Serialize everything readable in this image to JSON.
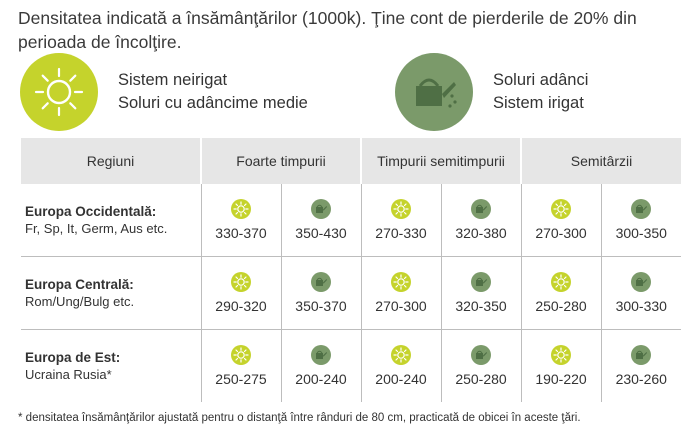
{
  "intro": "Densitatea indicată a însămânţărilor (1000k). Ţine cont de pierderile de 20% din perioada de încolţire.",
  "legend": {
    "dry": {
      "icon": "sun-icon",
      "line1": "Sistem neirigat",
      "line2": "Soluri cu adâncime medie"
    },
    "irrigated": {
      "icon": "watering-can-icon",
      "line1": "Soluri adânci",
      "line2": "Sistem irigat"
    }
  },
  "colors": {
    "sun": "#c5d32c",
    "can": "#7b9a6a",
    "header_bg": "#e6e6e6"
  },
  "table": {
    "headers": [
      "Regiuni",
      "Foarte timpurii",
      "Timpurii semitimpurii",
      "Semitârzii"
    ],
    "rows": [
      {
        "region": "Europa Occidentală:",
        "countries": "Fr, Sp, It, Germ, Aus etc.",
        "values": [
          "330-370",
          "350-430",
          "270-330",
          "320-380",
          "270-300",
          "300-350"
        ]
      },
      {
        "region": "Europa Centrală:",
        "countries": "Rom/Ung/Bulg etc.",
        "values": [
          "290-320",
          "350-370",
          "270-300",
          "320-350",
          "250-280",
          "300-330"
        ]
      },
      {
        "region": "Europa de Est:",
        "countries": "Ucraina Rusia*",
        "values": [
          "250-275",
          "200-240",
          "200-240",
          "250-280",
          "190-220",
          "230-260"
        ]
      }
    ]
  },
  "footnote": "* densitatea însămânţărilor ajustată pentru o distanţă între rânduri de 80 cm, practicată de obicei în aceste ţări."
}
